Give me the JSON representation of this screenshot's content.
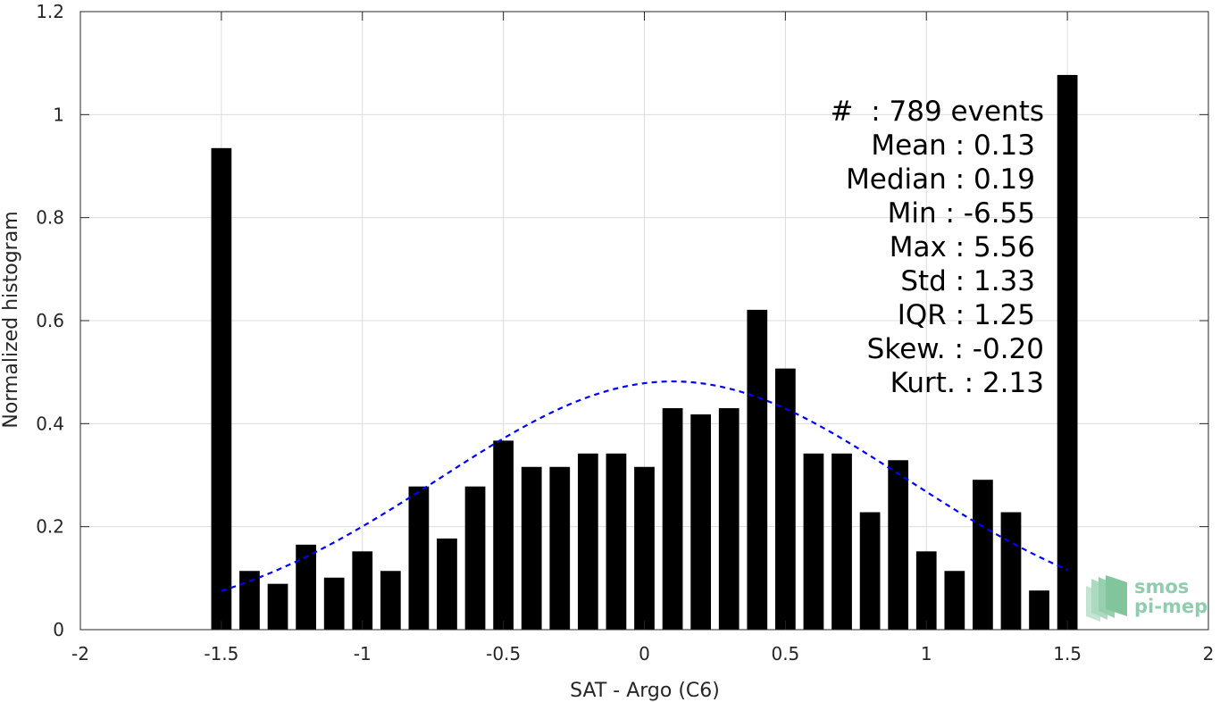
{
  "chart_data": {
    "type": "bar",
    "xlabel": "SAT - Argo (C6)",
    "ylabel": "Normalized histogram",
    "xlim": [
      -2,
      2
    ],
    "ylim": [
      0,
      1.2
    ],
    "x_ticks": [
      "-2",
      "-1.5",
      "-1",
      "-0.5",
      "0",
      "0.5",
      "1",
      "1.5",
      "2"
    ],
    "y_ticks": [
      "0",
      "0.2",
      "0.4",
      "0.6",
      "0.8",
      "1",
      "1.2"
    ],
    "grid": true,
    "bar_color": "#000000",
    "curve_color": "#0000ff",
    "x": [
      -1.5,
      -1.4,
      -1.3,
      -1.2,
      -1.1,
      -1.0,
      -0.9,
      -0.8,
      -0.7,
      -0.6,
      -0.5,
      -0.4,
      -0.3,
      -0.2,
      -0.1,
      0.0,
      0.1,
      0.2,
      0.3,
      0.4,
      0.5,
      0.6,
      0.7,
      0.8,
      0.9,
      1.0,
      1.1,
      1.2,
      1.3,
      1.4,
      1.5
    ],
    "values": [
      0.935,
      0.114,
      0.089,
      0.165,
      0.101,
      0.152,
      0.114,
      0.278,
      0.177,
      0.278,
      0.367,
      0.316,
      0.316,
      0.342,
      0.342,
      0.316,
      0.43,
      0.418,
      0.43,
      0.621,
      0.507,
      0.342,
      0.342,
      0.228,
      0.329,
      0.152,
      0.114,
      0.291,
      0.228,
      0.076,
      1.077
    ],
    "fit_curve": {
      "style": "dashed",
      "x_range": [
        -1.5,
        1.5
      ],
      "mean": 0.1,
      "std": 0.83,
      "peak": 0.482
    },
    "annotations": [
      "#  : 789 events",
      "Mean : 0.13",
      "Median : 0.19",
      "Min : -6.55",
      "Max : 5.56",
      "Std : 1.33",
      "IQR : 1.25",
      "Skew. : -0.20",
      "Kurt. : 2.13"
    ]
  },
  "logo": {
    "line1": "smos",
    "line2": "pi-mep"
  }
}
